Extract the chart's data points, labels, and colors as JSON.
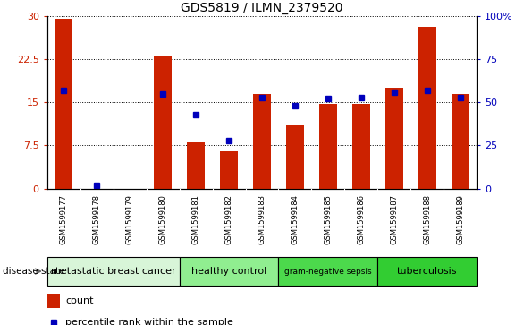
{
  "title": "GDS5819 / ILMN_2379520",
  "samples": [
    "GSM1599177",
    "GSM1599178",
    "GSM1599179",
    "GSM1599180",
    "GSM1599181",
    "GSM1599182",
    "GSM1599183",
    "GSM1599184",
    "GSM1599185",
    "GSM1599186",
    "GSM1599187",
    "GSM1599188",
    "GSM1599189"
  ],
  "counts": [
    29.5,
    0.0,
    0.0,
    23.0,
    8.0,
    6.5,
    16.5,
    11.0,
    14.8,
    14.8,
    17.5,
    28.2,
    16.5
  ],
  "percentile_ranks": [
    57,
    2,
    null,
    55,
    43,
    28,
    53,
    48,
    52,
    53,
    56,
    57,
    53
  ],
  "ylim_left": [
    0,
    30
  ],
  "ylim_right": [
    0,
    100
  ],
  "yticks_left": [
    0,
    7.5,
    15,
    22.5,
    30
  ],
  "ytick_labels_left": [
    "0",
    "7.5",
    "15",
    "22.5",
    "30"
  ],
  "yticks_right": [
    0,
    25,
    50,
    75,
    100
  ],
  "ytick_labels_right": [
    "0",
    "25",
    "50",
    "75",
    "100%"
  ],
  "groups": [
    {
      "label": "metastatic breast cancer",
      "start": 0,
      "end": 4,
      "color": "#d8f5d8"
    },
    {
      "label": "healthy control",
      "start": 4,
      "end": 7,
      "color": "#90ee90"
    },
    {
      "label": "gram-negative sepsis",
      "start": 7,
      "end": 10,
      "color": "#4cd94c"
    },
    {
      "label": "tuberculosis",
      "start": 10,
      "end": 13,
      "color": "#32cd32"
    }
  ],
  "bar_color": "#cc2200",
  "dot_color": "#0000bb",
  "bar_width": 0.55,
  "tick_label_color_left": "#cc2200",
  "tick_label_color_right": "#0000bb",
  "bg_color_tick_area": "#d3d3d3",
  "disease_state_label": "disease state"
}
